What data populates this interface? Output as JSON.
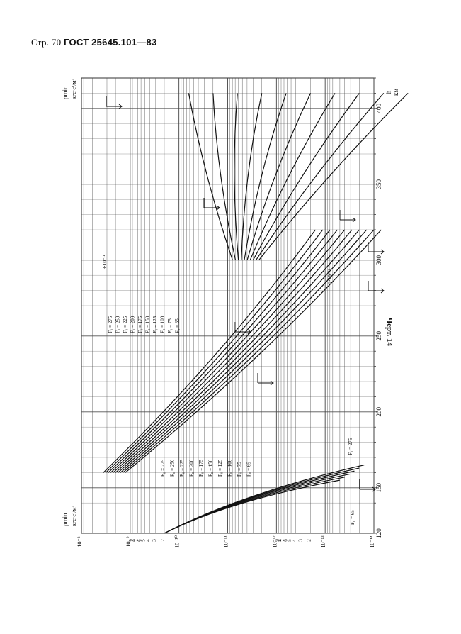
{
  "header": {
    "page_prefix": "Стр.",
    "page_number": "70",
    "standard": "ГОСТ",
    "number": "25645.101—83"
  },
  "caption": "Черт. 14",
  "chart_data": {
    "type": "line",
    "orientation": "rotated-90-clockwise",
    "x_axis": {
      "label_top": "h",
      "label_bottom": "км",
      "range": [
        120,
        420
      ],
      "tick_labels": [
        "120",
        "150",
        "200",
        "250",
        "300",
        "350",
        "400"
      ],
      "minor_step": 10
    },
    "y_axis": {
      "scale": "log",
      "label": "ρmin",
      "unit": "кгс·с²/м⁴",
      "range_exp": [
        -14,
        -8
      ],
      "decade_labels": [
        "10⁻⁸",
        "10⁻⁹",
        "10⁻¹⁰",
        "10⁻¹¹",
        "10⁻¹²",
        "10⁻¹³",
        "10⁻¹⁴"
      ],
      "subtick_labels": [
        "9",
        "8",
        "7",
        "6",
        "5",
        "4",
        "3",
        "2"
      ],
      "scale_marks": [
        "2·10⁻¹²",
        "9·10⁻¹¹"
      ]
    },
    "series_labels": [
      "F₀ = 275",
      "F₀ = 250",
      "F₀ = 225",
      "F₀ = 200",
      "F₀ = 175",
      "F₀ = 150",
      "F₀ = 125",
      "F₀ = 100",
      "F₀ = 75",
      "F₀ = 65"
    ],
    "low_band_labels": [
      "F₀ = 275",
      "F₀ = 65"
    ],
    "series": [
      {
        "name": "F₀ = 275",
        "F0": 275,
        "x": [
          120,
          150,
          170,
          200,
          250,
          300,
          350,
          400
        ],
        "y": [
          -10.0,
          -9.6,
          -9.35,
          -9.02,
          -8.65,
          -8.4,
          -8.2,
          -8.05
        ]
      },
      {
        "name": "F₀ = 65",
        "F0": 65,
        "x": [
          120,
          150,
          170,
          200,
          250,
          300,
          350,
          400
        ],
        "y": [
          -10.0,
          -9.7,
          -9.55,
          -9.4,
          -9.25,
          -9.15,
          -9.07,
          -9.0
        ]
      }
    ]
  }
}
